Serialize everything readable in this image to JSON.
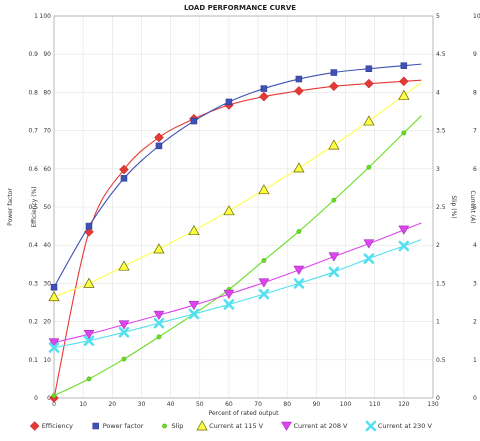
{
  "chart_data": {
    "type": "line",
    "title": "LOAD PERFORMANCE CURVE",
    "xlabel": "Percent of rated output",
    "xlim": [
      0,
      130
    ],
    "x_ticks": [
      0,
      10,
      20,
      30,
      40,
      50,
      60,
      70,
      80,
      90,
      100,
      110,
      120,
      130
    ],
    "y_axes": {
      "power_factor": {
        "label": "Power factor",
        "range": [
          0,
          1
        ],
        "ticks": [
          "0",
          "0.1",
          "0.2",
          "0.3",
          "0.4",
          "0.5",
          "0.6",
          "0.7",
          "0.8",
          "0.9",
          "1"
        ]
      },
      "efficiency": {
        "label": "Efficiency (%)",
        "range": [
          0,
          100
        ],
        "ticks": [
          "0",
          "10",
          "20",
          "30",
          "40",
          "50",
          "60",
          "70",
          "80",
          "90",
          "100"
        ]
      },
      "slip": {
        "label": "Slip (%)",
        "range": [
          0,
          5
        ],
        "ticks": [
          "0",
          "0.5",
          "1",
          "1.5",
          "2",
          "2.5",
          "3",
          "3.5",
          "4",
          "4.5",
          "5"
        ]
      },
      "current": {
        "label": "Current (A)",
        "range": [
          0,
          10
        ],
        "ticks": [
          "0",
          "1",
          "2",
          "3",
          "4",
          "5",
          "6",
          "7",
          "8",
          "9",
          "10"
        ]
      }
    },
    "x": [
      0,
      12,
      24,
      36,
      48,
      60,
      72,
      84,
      96,
      108,
      120
    ],
    "series": [
      {
        "name": "Efficiency",
        "axis": "efficiency",
        "marker": "diamond",
        "color": "#e53935",
        "values": [
          0,
          43.5,
          59.8,
          68.2,
          73.1,
          76.7,
          78.9,
          80.4,
          81.6,
          82.3,
          82.9
        ]
      },
      {
        "name": "Power factor",
        "axis": "power_factor",
        "marker": "square",
        "color": "#3f51b5",
        "values": [
          0.29,
          0.45,
          0.575,
          0.66,
          0.725,
          0.775,
          0.81,
          0.835,
          0.852,
          0.862,
          0.87
        ]
      },
      {
        "name": "Slip",
        "axis": "slip",
        "marker": "circle",
        "color": "#66dd22",
        "values": [
          0.03,
          0.25,
          0.51,
          0.8,
          1.1,
          1.42,
          1.8,
          2.18,
          2.59,
          3.02,
          3.47
        ]
      },
      {
        "name": "Current at 115 V",
        "axis": "current",
        "marker": "triangle-up",
        "color": "#ffff44",
        "values": [
          2.65,
          3.0,
          3.45,
          3.9,
          4.38,
          4.9,
          5.45,
          6.02,
          6.62,
          7.25,
          7.92
        ]
      },
      {
        "name": "Current at 208 V",
        "axis": "current",
        "marker": "triangle-down",
        "color": "#dd44ee",
        "values": [
          1.45,
          1.67,
          1.92,
          2.17,
          2.43,
          2.72,
          3.02,
          3.35,
          3.7,
          4.04,
          4.4
        ]
      },
      {
        "name": "Current at 230 V",
        "axis": "current",
        "marker": "x",
        "color": "#55e0f0",
        "values": [
          1.32,
          1.5,
          1.72,
          1.96,
          2.2,
          2.45,
          2.72,
          3.0,
          3.3,
          3.65,
          3.98
        ]
      }
    ],
    "grid": true,
    "legend_position": "bottom"
  }
}
